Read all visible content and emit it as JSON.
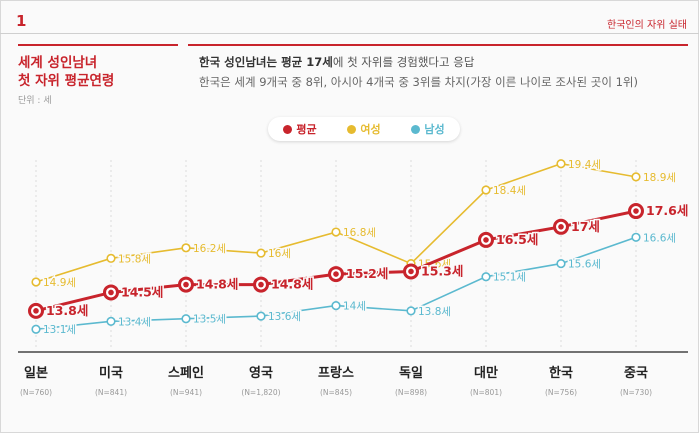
{
  "header": {
    "page_number": "1",
    "series_tag": "한국인의 자위 실태"
  },
  "chart_title": {
    "line1": "세계 성인남녀",
    "line2": "첫 자위 평균연령",
    "unit": "단위 : 세"
  },
  "description": {
    "main_bold": "한국 성인남녀는 평균 17세",
    "main_rest": "에 첫 자위를 경험했다고 응답",
    "sub": "한국은 세계 9개국 중 8위, 아시아 4개국 중 3위를 차지(가장 이른 나이로 조사된 곳이 1위)"
  },
  "legend": [
    {
      "label": "평균",
      "color": "#c8242c"
    },
    {
      "label": "여성",
      "color": "#e6bb2f"
    },
    {
      "label": "남성",
      "color": "#5bb9cf"
    }
  ],
  "chart_data": {
    "type": "line",
    "title": "세계 성인남녀 첫 자위 평균연령",
    "ylabel": "세",
    "ylim": [
      12.5,
      20
    ],
    "categories": [
      "일본",
      "미국",
      "스페인",
      "영국",
      "프랑스",
      "독일",
      "대만",
      "한국",
      "중국"
    ],
    "sample_sizes": [
      "(N=760)",
      "(N=841)",
      "(N=941)",
      "(N=1,820)",
      "(N=845)",
      "(N=898)",
      "(N=801)",
      "(N=756)",
      "(N=730)"
    ],
    "series": [
      {
        "name": "여성",
        "color": "#e6bb2f",
        "values": [
          14.9,
          15.8,
          16.2,
          16,
          16.8,
          15.6,
          18.4,
          19.4,
          18.9
        ],
        "labels": [
          "14.9세",
          "15.8세",
          "16.2세",
          "16세",
          "16.8세",
          "15.6세",
          "18.4세",
          "19.4세",
          "18.9세"
        ]
      },
      {
        "name": "평균",
        "color": "#c8242c",
        "values": [
          13.8,
          14.5,
          14.8,
          14.8,
          15.2,
          15.3,
          16.5,
          17,
          17.6
        ],
        "labels": [
          "13.8세",
          "14.5세",
          "14.8세",
          "14.8세",
          "15.2세",
          "15.3세",
          "16.5세",
          "17세",
          "17.6세"
        ]
      },
      {
        "name": "남성",
        "color": "#5bb9cf",
        "values": [
          13.1,
          13.4,
          13.5,
          13.6,
          14,
          13.8,
          15.1,
          15.6,
          16.6
        ],
        "labels": [
          "13.1세",
          "13.4세",
          "13.5세",
          "13.6세",
          "14세",
          "13.8세",
          "15.1세",
          "15.6세",
          "16.6세"
        ]
      }
    ]
  }
}
